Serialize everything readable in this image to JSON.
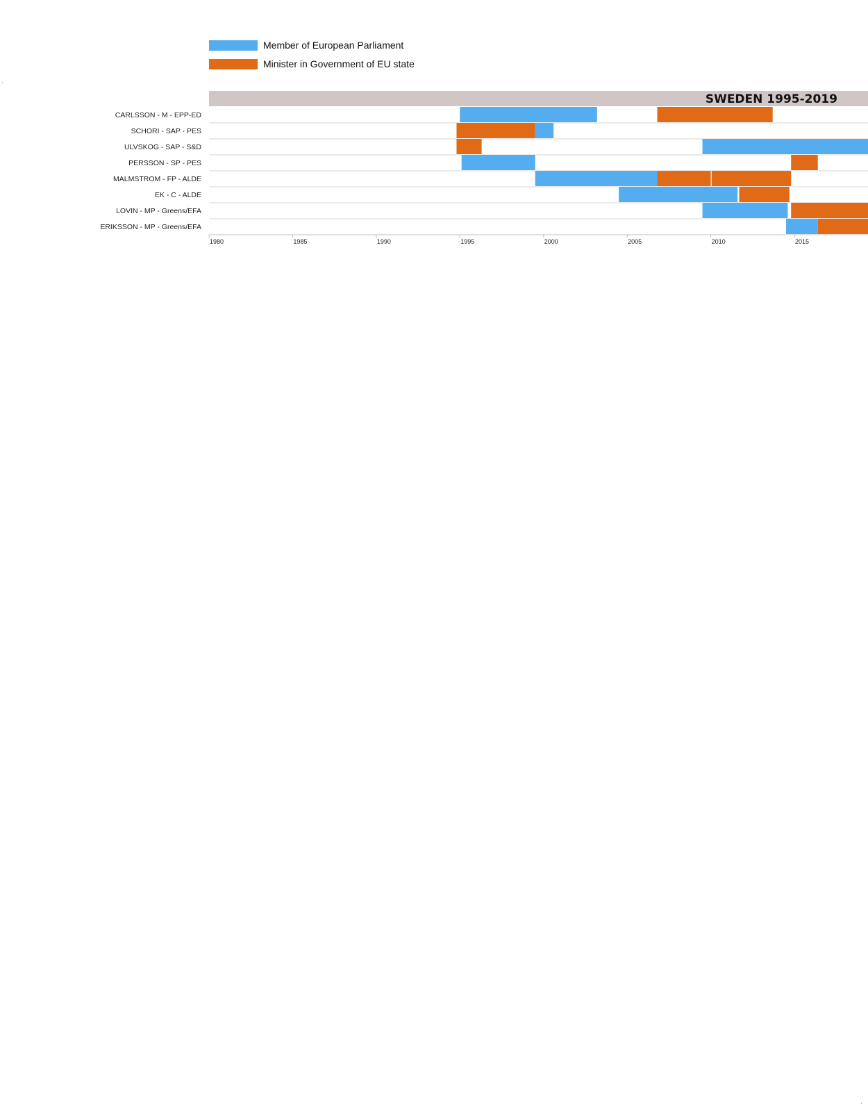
{
  "colors": {
    "mep": "#54adef",
    "minister": "#e06a16",
    "title_band": "#d1c6c6",
    "grid": "#d6d6d6",
    "axis": "#bdbdbd"
  },
  "legend": [
    {
      "label": "Member of European Parliament",
      "color": "#54adef"
    },
    {
      "label": "Minister in Government of EU state",
      "color": "#e06a16"
    }
  ],
  "chart_data": {
    "type": "timeline",
    "title": "SWEDEN 1995-2019",
    "x_domain": [
      1980,
      2019.4
    ],
    "x_ticks": [
      1980,
      1985,
      1990,
      1995,
      2000,
      2005,
      2010,
      2015
    ],
    "grid": "row separators only",
    "legend_position": "top-left",
    "rows": [
      {
        "label": "CARLSSON - M - EPP-ED",
        "spans": [
          {
            "role": "mep",
            "start": 1995.0,
            "end": 2003.2
          },
          {
            "role": "minister",
            "start": 2006.8,
            "end": 2013.7
          }
        ]
      },
      {
        "label": "SCHORI - SAP - PES",
        "spans": [
          {
            "role": "minister",
            "start": 1994.8,
            "end": 1999.5
          },
          {
            "role": "mep",
            "start": 1999.5,
            "end": 2000.6
          }
        ]
      },
      {
        "label": "ULVSKOG - SAP - S&D",
        "spans": [
          {
            "role": "minister",
            "start": 1994.8,
            "end": 1996.3
          },
          {
            "role": "mep",
            "start": 2009.5,
            "end": 2019.4
          }
        ]
      },
      {
        "label": "PERSSON - SP - PES",
        "spans": [
          {
            "role": "mep",
            "start": 1995.1,
            "end": 1999.5
          },
          {
            "role": "minister",
            "start": 2014.8,
            "end": 2016.4
          }
        ]
      },
      {
        "label": "MALMSTROM - FP - ALDE",
        "spans": [
          {
            "role": "mep",
            "start": 1999.5,
            "end": 2006.8
          },
          {
            "role": "minister",
            "start": 2006.8,
            "end": 2010.0
          },
          {
            "role": "minister",
            "start": 2010.05,
            "end": 2014.8
          }
        ]
      },
      {
        "label": "EK - C - ALDE",
        "spans": [
          {
            "role": "mep",
            "start": 2004.5,
            "end": 2011.6
          },
          {
            "role": "minister",
            "start": 2011.7,
            "end": 2014.7
          }
        ]
      },
      {
        "label": "LOVIN - MP - Greens/EFA",
        "spans": [
          {
            "role": "mep",
            "start": 2009.5,
            "end": 2014.6
          },
          {
            "role": "minister",
            "start": 2014.8,
            "end": 2019.4
          }
        ]
      },
      {
        "label": "ERIKSSON - MP - Greens/EFA",
        "spans": [
          {
            "role": "mep",
            "start": 2014.5,
            "end": 2016.4
          },
          {
            "role": "minister",
            "start": 2016.4,
            "end": 2019.4
          }
        ]
      }
    ]
  }
}
